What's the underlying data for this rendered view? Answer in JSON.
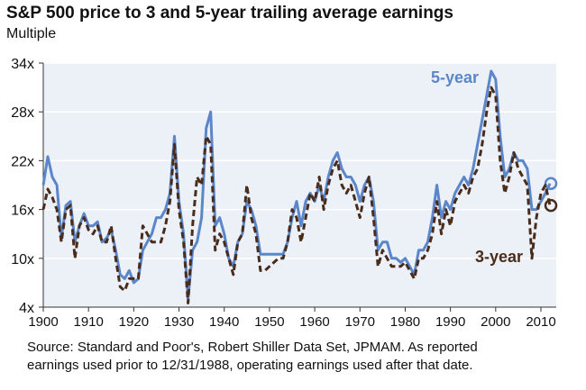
{
  "chart_data": {
    "type": "line",
    "title": "S&P 500 price to 3 and 5-year trailing average earnings",
    "subtitle": "Multiple",
    "xlim": [
      1900,
      2013
    ],
    "ylim": [
      4,
      34
    ],
    "x_ticks": [
      "1900",
      "1910",
      "1920",
      "1930",
      "1940",
      "1950",
      "1960",
      "1970",
      "1980",
      "1990",
      "2000",
      "2010"
    ],
    "y_ticks": [
      "4x",
      "10x",
      "16x",
      "22x",
      "28x",
      "34x"
    ],
    "grid": "horizontal",
    "colors": {
      "5-year": "#5b86c9",
      "3-year": "#4a2c1c",
      "plot_bg": "#ecf1f7"
    },
    "x": [
      1900,
      1901,
      1902,
      1903,
      1904,
      1905,
      1906,
      1907,
      1908,
      1909,
      1910,
      1911,
      1912,
      1913,
      1914,
      1915,
      1916,
      1917,
      1918,
      1919,
      1920,
      1921,
      1922,
      1923,
      1924,
      1925,
      1926,
      1927,
      1928,
      1929,
      1930,
      1931,
      1932,
      1933,
      1934,
      1935,
      1936,
      1937,
      1938,
      1939,
      1940,
      1941,
      1942,
      1943,
      1944,
      1945,
      1946,
      1947,
      1948,
      1949,
      1950,
      1951,
      1952,
      1953,
      1954,
      1955,
      1956,
      1957,
      1958,
      1959,
      1960,
      1961,
      1962,
      1963,
      1964,
      1965,
      1966,
      1967,
      1968,
      1969,
      1970,
      1971,
      1972,
      1973,
      1974,
      1975,
      1976,
      1977,
      1978,
      1979,
      1980,
      1981,
      1982,
      1983,
      1984,
      1985,
      1986,
      1987,
      1988,
      1989,
      1990,
      1991,
      1992,
      1993,
      1994,
      1995,
      1996,
      1997,
      1998,
      1999,
      2000,
      2001,
      2002,
      2003,
      2004,
      2005,
      2006,
      2007,
      2008,
      2009,
      2010,
      2011,
      2012
    ],
    "series": [
      {
        "name": "5-year",
        "values": [
          19,
          22.5,
          20,
          19,
          12.5,
          16.5,
          17,
          12,
          14,
          15.5,
          14,
          14,
          14.5,
          12,
          12.5,
          13.5,
          11,
          8,
          7.5,
          8.5,
          7,
          7.5,
          11,
          12,
          13,
          15,
          15,
          16,
          18,
          25,
          17,
          13,
          5,
          11,
          12,
          15,
          26,
          28,
          14,
          15,
          13,
          10,
          9,
          12,
          13,
          17,
          16,
          14,
          10.5,
          10.5,
          10.5,
          10.5,
          10.5,
          10.5,
          12,
          15,
          17,
          14,
          17,
          18,
          17,
          19,
          17,
          20,
          22,
          23,
          21,
          20,
          20,
          19,
          17,
          19,
          20,
          17,
          11,
          12,
          12,
          10,
          10,
          9.5,
          10,
          9,
          8,
          11,
          11,
          12,
          15,
          19,
          15,
          17,
          16,
          18,
          19,
          20,
          19,
          21,
          24,
          27,
          30,
          33,
          32,
          25,
          20,
          21,
          23,
          22,
          22,
          21,
          16,
          16,
          17,
          18,
          19.2
        ]
      },
      {
        "name": "3-year",
        "values": [
          16,
          18.5,
          17.5,
          16,
          12,
          16,
          16.5,
          10,
          14,
          15,
          13.5,
          13,
          14,
          12,
          12,
          14,
          10,
          6.5,
          6,
          7.5,
          7.5,
          7.5,
          14,
          13,
          12,
          12,
          12,
          14,
          17,
          24,
          16,
          12,
          4.5,
          14,
          20,
          19,
          25,
          24,
          11,
          13,
          12,
          10,
          8,
          12,
          13,
          19,
          15,
          13,
          8.5,
          8.5,
          9,
          9.5,
          10,
          10,
          12,
          16,
          15,
          12,
          15,
          18,
          17,
          20,
          16,
          19,
          21,
          22,
          19,
          18,
          19,
          17,
          15,
          18,
          20,
          15,
          9,
          11,
          10,
          9,
          9,
          9,
          9.5,
          8.5,
          7.5,
          10,
          10,
          11,
          13,
          17,
          13,
          16,
          14,
          17,
          18,
          19,
          18,
          20,
          21,
          24,
          28,
          31,
          30,
          22,
          18,
          20,
          23,
          21,
          20,
          19,
          10,
          15,
          18,
          19,
          16.5
        ]
      }
    ],
    "annotations": {
      "label_5yr": "5-year",
      "label_3yr": "3-year"
    }
  },
  "source_note": {
    "line1": "Source: Standard and Poor's, Robert Shiller Data Set, JPMAM.  As reported",
    "line2": "earnings used prior to 12/31/1988, operating earnings used after that date."
  }
}
